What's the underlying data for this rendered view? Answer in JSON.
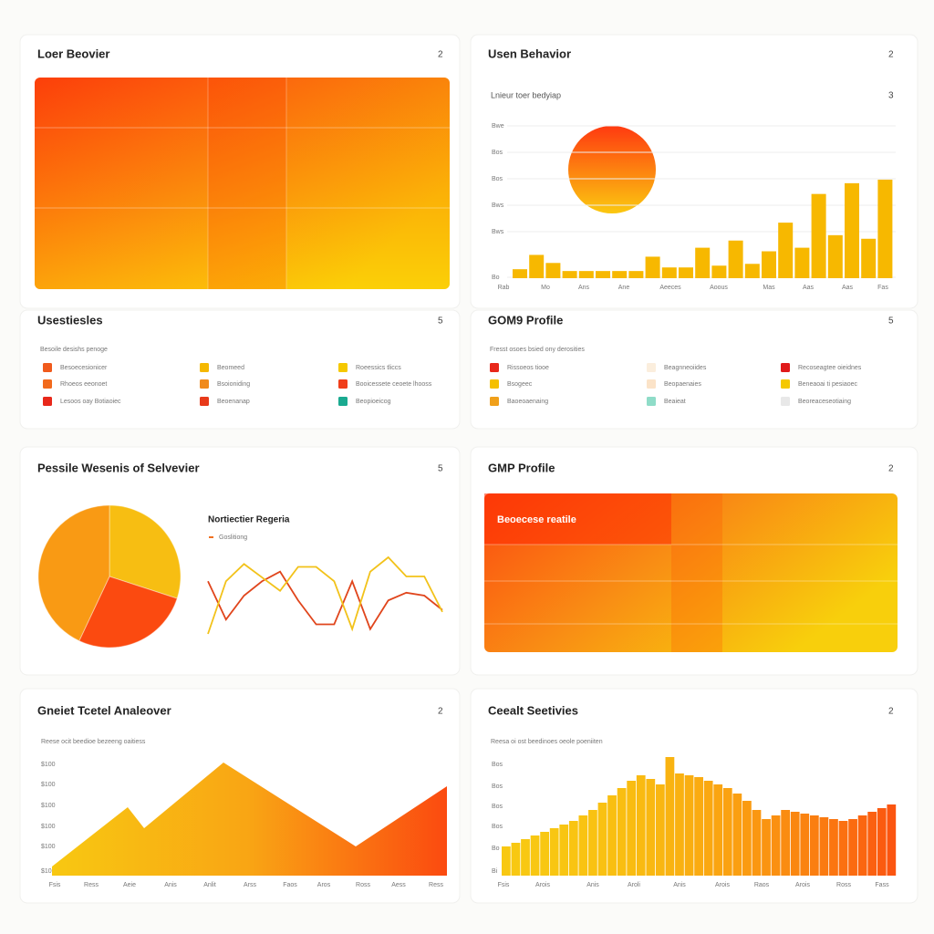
{
  "panels": [
    {
      "title": "Loer Beovier",
      "badge": "2"
    },
    {
      "title": "Usen Behavior",
      "badge": "2",
      "subtitle": "Lnieur toer bedyiap",
      "subbadge": "3",
      "chart": {
        "type": "bar",
        "color": "#f7b800",
        "ylabels": [
          "Bwe",
          "Bos",
          "Bos",
          "Bws",
          "Bws",
          "Bo"
        ],
        "xlabels": [
          "Rab",
          "Mo",
          "Ans",
          "Ane",
          "Aeeces",
          "Aoous",
          "Mas",
          "Aas",
          "Aas",
          "Fas"
        ],
        "values": [
          10,
          26,
          17,
          8,
          8,
          8,
          8,
          8,
          24,
          12,
          12,
          34,
          14,
          42,
          16,
          30,
          62,
          34,
          94,
          48,
          106,
          44,
          110
        ],
        "ylim": [
          0,
          170
        ]
      }
    },
    {
      "title": "Usestiesles",
      "badge": "5",
      "subtitle": "Besoile desishs penoge",
      "items": [
        {
          "label": "Besoecesionicer",
          "color": "#f05a1c"
        },
        {
          "label": "Beomeed",
          "color": "#f5b800"
        },
        {
          "label": "Roeessics tliccs",
          "color": "#f5c800"
        },
        {
          "label": "Rhoeos eeonoet",
          "color": "#f26a1c"
        },
        {
          "label": "Bsoioniding",
          "color": "#f08a1c"
        },
        {
          "label": "Booicessete ceoete lhooss",
          "color": "#f03e1a"
        },
        {
          "label": "Lesoos oay Botiaoiec",
          "color": "#e8281a"
        },
        {
          "label": "Beoenanap",
          "color": "#e83a1a"
        },
        {
          "label": "Beopioeicog",
          "color": "#1aaa90"
        }
      ]
    },
    {
      "title": "GOM9 Profile",
      "badge": "5",
      "subtitle": "Fresst osoes bsied ony derosities",
      "items": [
        {
          "label": "Rissoeos tiooe",
          "color": "#e8281a"
        },
        {
          "label": "Beagnneoiides",
          "color": "#fbeedd"
        },
        {
          "label": "Recoseagtee oieidnes",
          "color": "#e01a1a"
        },
        {
          "label": "Bsogeec",
          "color": "#f5c000"
        },
        {
          "label": "Beopaenaies",
          "color": "#fbe3c8"
        },
        {
          "label": "Beneaoai ti pesiaoec",
          "color": "#f5c800"
        },
        {
          "label": "Baoeoaenaing",
          "color": "#f0a01a"
        },
        {
          "label": "Beaieat",
          "color": "#8fdcc8"
        },
        {
          "label": "Beoreaceseotiaing",
          "color": "#e8e8e8"
        }
      ]
    },
    {
      "title": "Pessile Wesenis of Selvevier",
      "badge": "5",
      "pie": {
        "values": [
          30,
          27,
          43
        ],
        "colors": [
          "#f7be12",
          "#fb4a10",
          "#f99a14"
        ]
      },
      "line": {
        "title": "Nortiectier Regeria",
        "legend": "Goslitiong",
        "legend_color": "#f07020",
        "ylim": [
          0,
          100
        ],
        "series": [
          {
            "color": "#e0451c",
            "values": [
              55,
              15,
              40,
              55,
              65,
              35,
              10,
              10,
              55,
              5,
              35,
              43,
              40,
              25
            ]
          },
          {
            "color": "#f2c21a",
            "values": [
              0,
              55,
              73,
              59,
              45,
              70,
              70,
              55,
              5,
              65,
              80,
              60,
              60,
              23
            ]
          }
        ]
      }
    },
    {
      "title": "GMP Profile",
      "badge": "2",
      "label": "Beoecese reatile"
    },
    {
      "title": "Gneiet Tcetel Analeover",
      "badge": "2",
      "subtitle": "Reese ocit beedioe bezeeng oaitiess",
      "chart": {
        "type": "area",
        "ylabels": [
          "$100",
          "$100",
          "$100",
          "$100",
          "$100",
          "$10"
        ],
        "xlabels": [
          "Fsis",
          "Ress",
          "Aeie",
          "Anis",
          "Anlit",
          "Arss",
          "Faos",
          "Aros",
          "Ross",
          "Aess",
          "Ress"
        ],
        "x": [
          0,
          83,
          101,
          188,
          333,
          433
        ],
        "values": [
          10,
          75,
          52,
          124,
          32,
          98
        ],
        "xlim": [
          0,
          433
        ],
        "ylim": [
          0,
          130
        ]
      }
    },
    {
      "title": "Ceealt Seetivies",
      "badge": "2",
      "subtitle": "Reesa oi ost beedinoes oeole poeniiten",
      "chart": {
        "type": "columns",
        "ylabels": [
          "Bos",
          "Bos",
          "Bos",
          "Bos",
          "Bo",
          "Bi"
        ],
        "xlabels": [
          "Fsis",
          "Arois",
          "Anis",
          "Aroli",
          "Anis",
          "Arois",
          "Raos",
          "Arois",
          "Ross",
          "Fass"
        ],
        "values": [
          32,
          36,
          40,
          44,
          48,
          52,
          56,
          60,
          66,
          72,
          80,
          88,
          96,
          104,
          110,
          106,
          100,
          130,
          112,
          110,
          108,
          104,
          100,
          96,
          90,
          82,
          72,
          62,
          66,
          72,
          70,
          68,
          66,
          64,
          62,
          60,
          62,
          66,
          70,
          74,
          78
        ],
        "ylim": [
          0,
          140
        ]
      }
    }
  ]
}
